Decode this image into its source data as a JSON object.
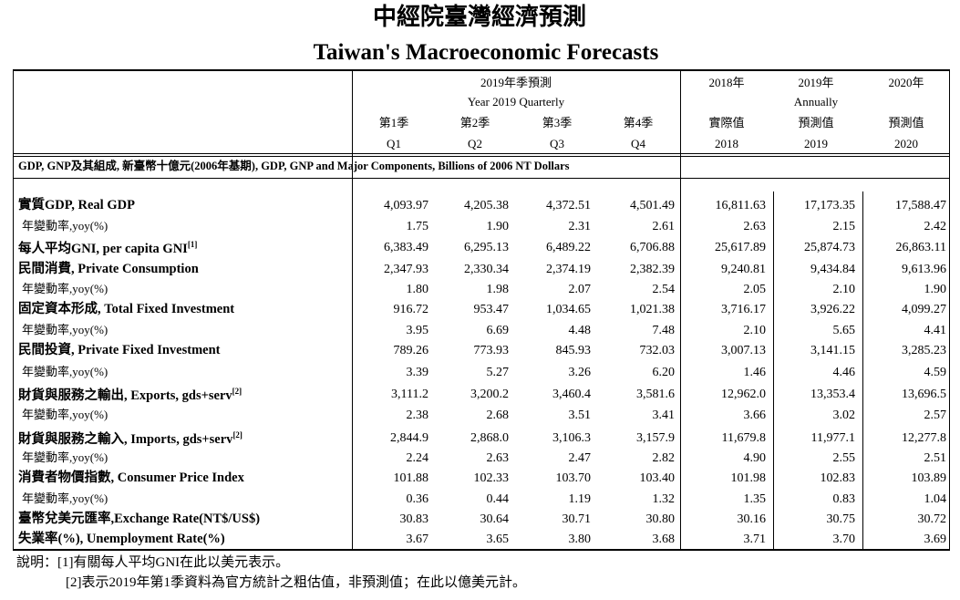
{
  "header": {
    "title_zh": "中經院臺灣經濟預測",
    "title_en": "Taiwan's Macroeconomic Forecasts"
  },
  "table": {
    "quarterly_group": {
      "zh": "2019年季預測",
      "en": "Year 2019 Quarterly"
    },
    "annual_group": "Annually",
    "annual_years": [
      "2018年",
      "2019年",
      "2020年"
    ],
    "quarters_zh": [
      "第1季",
      "第2季",
      "第3季",
      "第4季"
    ],
    "quarters_en": [
      "Q1",
      "Q2",
      "Q3",
      "Q4"
    ],
    "annual_kind": [
      "實際值",
      "預測值",
      "預測值"
    ],
    "annual_labels": [
      "2018",
      "2019",
      "2020"
    ],
    "section": "GDP, GNP及其組成, 新臺幣十億元(2006年基期), GDP, GNP and Major Components, Billions of 2006 NT Dollars",
    "rows": [
      {
        "label": "實質GDP, Real GDP",
        "values": [
          "4,093.97",
          "4,205.38",
          "4,372.51",
          "4,501.49",
          "16,811.63",
          "17,173.35",
          "17,588.47"
        ],
        "yoy": {
          "label": "年變動率,yoy(%)",
          "values": [
            "1.75",
            "1.90",
            "2.31",
            "2.61",
            "2.63",
            "2.15",
            "2.42"
          ]
        }
      },
      {
        "label": "每人平均GNI, per capita GNI",
        "note": "[1]",
        "values": [
          "6,383.49",
          "6,295.13",
          "6,489.22",
          "6,706.88",
          "25,617.89",
          "25,874.73",
          "26,863.11"
        ]
      },
      {
        "label": "民間消費, Private Consumption",
        "values": [
          "2,347.93",
          "2,330.34",
          "2,374.19",
          "2,382.39",
          "9,240.81",
          "9,434.84",
          "9,613.96"
        ],
        "yoy": {
          "label": "年變動率,yoy(%)",
          "values": [
            "1.80",
            "1.98",
            "2.07",
            "2.54",
            "2.05",
            "2.10",
            "1.90"
          ]
        }
      },
      {
        "label": "固定資本形成, Total Fixed Investment",
        "values": [
          "916.72",
          "953.47",
          "1,034.65",
          "1,021.38",
          "3,716.17",
          "3,926.22",
          "4,099.27"
        ],
        "yoy": {
          "label": "年變動率,yoy(%)",
          "values": [
            "3.95",
            "6.69",
            "4.48",
            "7.48",
            "2.10",
            "5.65",
            "4.41"
          ]
        }
      },
      {
        "label": "民間投資, Private Fixed Investment",
        "values": [
          "789.26",
          "773.93",
          "845.93",
          "732.03",
          "3,007.13",
          "3,141.15",
          "3,285.23"
        ],
        "yoy": {
          "label": "年變動率,yoy(%)",
          "values": [
            "3.39",
            "5.27",
            "3.26",
            "6.20",
            "1.46",
            "4.46",
            "4.59"
          ]
        }
      },
      {
        "label": "財貨與服務之輸出, Exports, gds+serv",
        "note": "[2]",
        "values": [
          "3,111.2",
          "3,200.2",
          "3,460.4",
          "3,581.6",
          "12,962.0",
          "13,353.4",
          "13,696.5"
        ],
        "yoy": {
          "label": "年變動率,yoy(%)",
          "values": [
            "2.38",
            "2.68",
            "3.51",
            "3.41",
            "3.66",
            "3.02",
            "2.57"
          ]
        }
      },
      {
        "label": "財貨與服務之輸入, Imports, gds+serv",
        "note": "[2]",
        "values": [
          "2,844.9",
          "2,868.0",
          "3,106.3",
          "3,157.9",
          "11,679.8",
          "11,977.1",
          "12,277.8"
        ],
        "yoy": {
          "label": "年變動率,yoy(%)",
          "values": [
            "2.24",
            "2.63",
            "2.47",
            "2.82",
            "4.90",
            "2.55",
            "2.51"
          ]
        }
      },
      {
        "label": "消費者物價指數, Consumer Price Index",
        "values": [
          "101.88",
          "102.33",
          "103.70",
          "103.40",
          "101.98",
          "102.83",
          "103.89"
        ],
        "yoy": {
          "label": "年變動率,yoy(%)",
          "values": [
            "0.36",
            "0.44",
            "1.19",
            "1.32",
            "1.35",
            "0.83",
            "1.04"
          ]
        }
      },
      {
        "label": "臺幣兌美元匯率,Exchange Rate(NT$/US$)",
        "values": [
          "30.83",
          "30.64",
          "30.71",
          "30.80",
          "30.16",
          "30.75",
          "30.72"
        ]
      },
      {
        "label": "失業率(%), Unemployment Rate(%)",
        "values": [
          "3.67",
          "3.65",
          "3.80",
          "3.68",
          "3.71",
          "3.70",
          "3.69"
        ]
      }
    ]
  },
  "notes": [
    "說明：[1]有關每人平均GNI在此以美元表示。",
    "[2]表示2019年第1季資料為官方統計之粗估值，非預測值；在此以億美元計。"
  ]
}
